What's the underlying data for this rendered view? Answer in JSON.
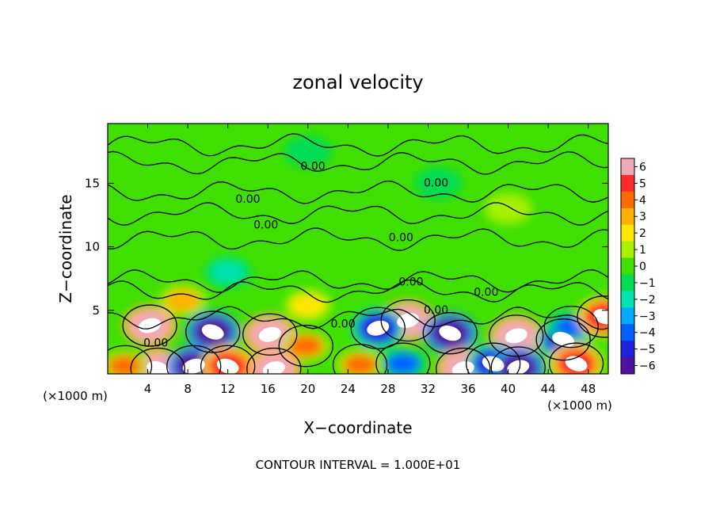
{
  "chart_data": {
    "type": "heatmap",
    "title": "zonal velocity",
    "xlabel": "X−coordinate",
    "ylabel": "Z−coordinate",
    "x_ticks": [
      4,
      8,
      12,
      16,
      20,
      24,
      28,
      32,
      36,
      40,
      44,
      48
    ],
    "y_ticks": [
      5,
      10,
      15
    ],
    "x_unit_left": "(×1000 m)",
    "x_unit_right": "(×1000 m)",
    "xlim": [
      0,
      50
    ],
    "ylim": [
      0,
      19.7
    ],
    "colorbar_ticks": [
      "6",
      "5",
      "4",
      "3",
      "2",
      "1",
      "0",
      "−1",
      "−2",
      "−3",
      "−4",
      "−5",
      "−6"
    ],
    "colorbar_range": [
      -6,
      6
    ],
    "colorbar_colors": [
      "#f2a8b8",
      "#ff2a2a",
      "#ff6a00",
      "#ffb000",
      "#ffe600",
      "#a6f000",
      "#3fe000",
      "#00dc55",
      "#00e3b0",
      "#00aaff",
      "#0060ff",
      "#2020e0",
      "#5010a0"
    ],
    "contour_labels": [
      {
        "text": "0.00",
        "x": 20.5,
        "z": 16.3
      },
      {
        "text": "0.00",
        "x": 32.8,
        "z": 15.0
      },
      {
        "text": "0.00",
        "x": 14.0,
        "z": 13.7
      },
      {
        "text": "0.00",
        "x": 15.8,
        "z": 11.7
      },
      {
        "text": "0.00",
        "x": 29.3,
        "z": 10.7
      },
      {
        "text": "0.00",
        "x": 30.3,
        "z": 7.2
      },
      {
        "text": "0.00",
        "x": 37.8,
        "z": 6.4
      },
      {
        "text": "0.00",
        "x": 32.8,
        "z": 5.0
      },
      {
        "text": "0.00",
        "x": 23.5,
        "z": 3.9
      },
      {
        "text": "0.00",
        "x": 4.8,
        "z": 2.4
      }
    ],
    "anomalies": [
      {
        "x": 4.2,
        "z": 3.8,
        "value": 6
      },
      {
        "x": 10.5,
        "z": 3.3,
        "value": -6
      },
      {
        "x": 16.2,
        "z": 3.1,
        "value": 6
      },
      {
        "x": 19.8,
        "z": 2.2,
        "value": 4
      },
      {
        "x": 30.0,
        "z": 4.2,
        "value": 6
      },
      {
        "x": 34.2,
        "z": 3.2,
        "value": -6
      },
      {
        "x": 40.8,
        "z": 3.0,
        "value": 6
      },
      {
        "x": 45.5,
        "z": 2.7,
        "value": -5
      },
      {
        "x": 46.3,
        "z": 3.7,
        "value": -4
      },
      {
        "x": 49.6,
        "z": 4.5,
        "value": 5
      },
      {
        "x": 27.0,
        "z": 3.6,
        "value": -5
      },
      {
        "x": 5.0,
        "z": 0.4,
        "value": 6
      },
      {
        "x": 8.6,
        "z": 0.6,
        "value": -6
      },
      {
        "x": 12.0,
        "z": 0.6,
        "value": 5
      },
      {
        "x": 16.6,
        "z": 0.4,
        "value": 6
      },
      {
        "x": 25.2,
        "z": 0.7,
        "value": 4
      },
      {
        "x": 35.5,
        "z": 0.4,
        "value": 6
      },
      {
        "x": 38.5,
        "z": 0.8,
        "value": -5
      },
      {
        "x": 41.0,
        "z": 0.5,
        "value": -6
      },
      {
        "x": 46.8,
        "z": 0.8,
        "value": 5
      },
      {
        "x": 1.7,
        "z": 0.6,
        "value": 4
      },
      {
        "x": 29.5,
        "z": 0.8,
        "value": -4
      },
      {
        "x": 20.0,
        "z": 5.4,
        "value": 2
      },
      {
        "x": 7.5,
        "z": 5.8,
        "value": 3
      },
      {
        "x": 12.0,
        "z": 8.0,
        "value": -2
      },
      {
        "x": 33.0,
        "z": 15.0,
        "value": -1
      },
      {
        "x": 20.0,
        "z": 17.5,
        "value": -1
      },
      {
        "x": 40.0,
        "z": 13.0,
        "value": 1
      }
    ]
  },
  "footer": {
    "contour_interval": "CONTOUR INTERVAL = 1.000E+01"
  }
}
